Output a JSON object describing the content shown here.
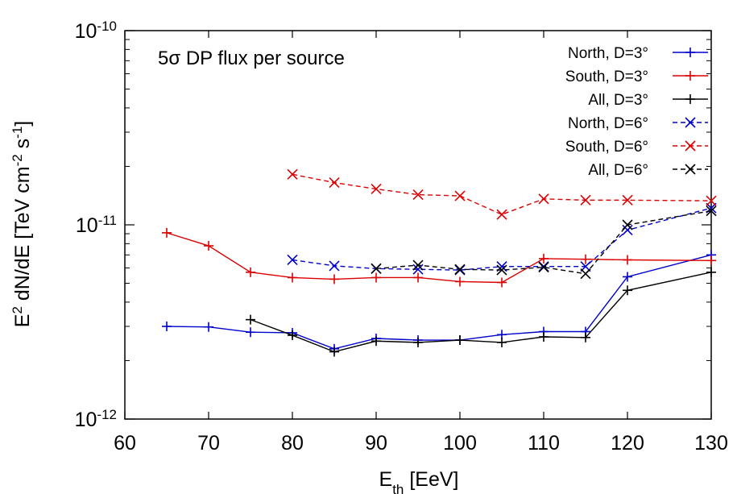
{
  "chart_data": {
    "type": "line",
    "annotation": "5σ DP flux per source",
    "xlabel_main": "E",
    "xlabel_sub": "th",
    "xlabel_rest": " [EeV]",
    "ylabel_main": "E",
    "ylabel_sup": "2",
    "ylabel_rest1": " dN/dE [TeV cm",
    "ylabel_sup2": "-2",
    "ylabel_rest2": " s",
    "ylabel_sup3": "-1",
    "ylabel_rest3": "]",
    "xlim": [
      60,
      130
    ],
    "ylim": [
      1e-12,
      1e-10
    ],
    "yscale": "log",
    "xticks": [
      "60",
      "70",
      "80",
      "90",
      "100",
      "110",
      "120",
      "130"
    ],
    "xtick_values": [
      60,
      70,
      80,
      90,
      100,
      110,
      120,
      130
    ],
    "yticks": [
      {
        "base": "10",
        "exp": "-12",
        "value": 1e-12
      },
      {
        "base": "10",
        "exp": "-11",
        "value": 1e-11
      },
      {
        "base": "10",
        "exp": "-10",
        "value": 1e-10
      }
    ],
    "legend_position": "top-right",
    "series": [
      {
        "name": "North, D=3°",
        "color": "#0000cc",
        "marker": "plus",
        "dash": false,
        "x": [
          65,
          70,
          75,
          80,
          85,
          90,
          95,
          100,
          105,
          110,
          115,
          120,
          130
        ],
        "y": [
          3e-12,
          2.98e-12,
          2.8e-12,
          2.78e-12,
          2.3e-12,
          2.6e-12,
          2.55e-12,
          2.55e-12,
          2.72e-12,
          2.82e-12,
          2.82e-12,
          5.4e-12,
          7e-12
        ]
      },
      {
        "name": "South, D=3°",
        "color": "#dd0000",
        "marker": "plus",
        "dash": false,
        "x": [
          65,
          70,
          75,
          80,
          85,
          90,
          95,
          100,
          105,
          110,
          115,
          120,
          130
        ],
        "y": [
          9.1e-12,
          7.8e-12,
          5.7e-12,
          5.35e-12,
          5.25e-12,
          5.35e-12,
          5.35e-12,
          5.1e-12,
          5.05e-12,
          6.7e-12,
          6.65e-12,
          6.6e-12,
          6.55e-12
        ]
      },
      {
        "name": "All, D=3°",
        "color": "#000000",
        "marker": "plus",
        "dash": false,
        "x": [
          75,
          80,
          85,
          90,
          95,
          100,
          105,
          110,
          115,
          120,
          130
        ],
        "y": [
          3.25e-12,
          2.7e-12,
          2.22e-12,
          2.52e-12,
          2.48e-12,
          2.55e-12,
          2.48e-12,
          2.65e-12,
          2.63e-12,
          4.6e-12,
          5.7e-12
        ]
      },
      {
        "name": "North, D=6°",
        "color": "#0000cc",
        "marker": "cross",
        "dash": true,
        "x": [
          80,
          85,
          90,
          95,
          100,
          105,
          110,
          115,
          120,
          130
        ],
        "y": [
          6.6e-12,
          6.15e-12,
          5.95e-12,
          5.9e-12,
          5.85e-12,
          6.1e-12,
          6.1e-12,
          6.1e-12,
          9.4e-12,
          1.22e-11
        ]
      },
      {
        "name": "South, D=6°",
        "color": "#dd0000",
        "marker": "cross",
        "dash": true,
        "x": [
          80,
          85,
          90,
          95,
          100,
          105,
          110,
          115,
          120,
          130
        ],
        "y": [
          1.82e-11,
          1.65e-11,
          1.53e-11,
          1.43e-11,
          1.41e-11,
          1.13e-11,
          1.36e-11,
          1.34e-11,
          1.34e-11,
          1.33e-11
        ]
      },
      {
        "name": "All, D=6°",
        "color": "#000000",
        "marker": "cross",
        "dash": true,
        "x": [
          90,
          95,
          100,
          105,
          110,
          115,
          120,
          130
        ],
        "y": [
          5.95e-12,
          6.2e-12,
          5.9e-12,
          5.85e-12,
          6.05e-12,
          5.6e-12,
          1e-11,
          1.18e-11
        ]
      }
    ]
  }
}
